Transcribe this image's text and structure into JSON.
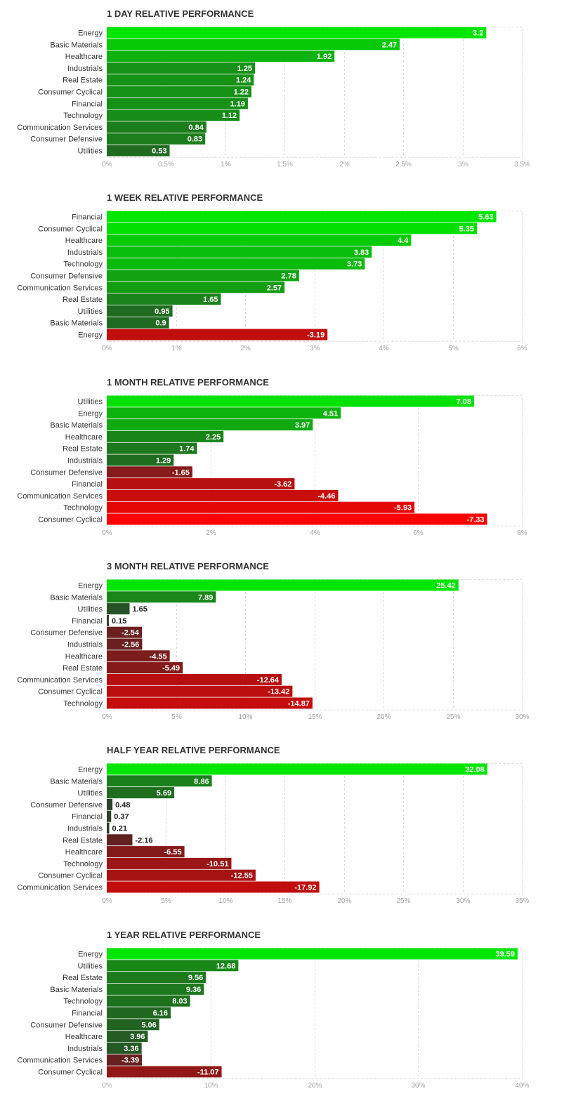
{
  "chart_data": [
    {
      "type": "bar",
      "orientation": "horizontal",
      "title": "1 DAY RELATIVE PERFORMANCE",
      "categories": [
        "Energy",
        "Basic Materials",
        "Healthcare",
        "Industrials",
        "Real Estate",
        "Consumer Cyclical",
        "Financial",
        "Technology",
        "Communication Services",
        "Consumer Defensive",
        "Utilities"
      ],
      "values": [
        3.2,
        2.47,
        1.92,
        1.25,
        1.24,
        1.22,
        1.19,
        1.12,
        0.84,
        0.83,
        0.53
      ],
      "value_labels": [
        "3.2",
        "2.47",
        "1.92",
        "1.25",
        "1.24",
        "1.22",
        "1.19",
        "1.12",
        "0.84",
        "0.83",
        "0.53"
      ],
      "xlim": [
        0,
        3.5
      ],
      "xticks": [
        0,
        0.5,
        1,
        1.5,
        2,
        2.5,
        3,
        3.5
      ],
      "xtick_labels": [
        "0%",
        "0.5%",
        "1%",
        "1.5%",
        "2%",
        "2.5%",
        "3%",
        "3.5%"
      ],
      "grid": true
    },
    {
      "type": "bar",
      "orientation": "horizontal",
      "title": "1 WEEK RELATIVE PERFORMANCE",
      "categories": [
        "Financial",
        "Consumer Cyclical",
        "Healthcare",
        "Industrials",
        "Technology",
        "Consumer Defensive",
        "Communication Services",
        "Real Estate",
        "Utilities",
        "Basic Materials",
        "Energy"
      ],
      "values": [
        5.63,
        5.35,
        4.4,
        3.83,
        3.73,
        2.78,
        2.57,
        1.65,
        0.95,
        0.9,
        -3.19
      ],
      "value_labels": [
        "5.63",
        "5.35",
        "4.4",
        "3.83",
        "3.73",
        "2.78",
        "2.57",
        "1.65",
        "0.95",
        "0.9",
        "-3.19"
      ],
      "xlim": [
        0,
        6
      ],
      "xticks": [
        0,
        1,
        2,
        3,
        4,
        5,
        6
      ],
      "xtick_labels": [
        "0%",
        "1%",
        "2%",
        "3%",
        "4%",
        "5%",
        "6%"
      ],
      "grid": true
    },
    {
      "type": "bar",
      "orientation": "horizontal",
      "title": "1 MONTH RELATIVE PERFORMANCE",
      "categories": [
        "Utilities",
        "Energy",
        "Basic Materials",
        "Healthcare",
        "Real Estate",
        "Industrials",
        "Consumer Defensive",
        "Financial",
        "Communication Services",
        "Technology",
        "Consumer Cyclical"
      ],
      "values": [
        7.08,
        4.51,
        3.97,
        2.25,
        1.74,
        1.29,
        -1.65,
        -3.62,
        -4.46,
        -5.93,
        -7.33
      ],
      "value_labels": [
        "7.08",
        "4.51",
        "3.97",
        "2.25",
        "1.74",
        "1.29",
        "-1.65",
        "-3.62",
        "-4.46",
        "-5.93",
        "-7.33"
      ],
      "xlim": [
        0,
        8
      ],
      "xticks": [
        0,
        2,
        4,
        6,
        8
      ],
      "xtick_labels": [
        "0%",
        "2%",
        "4%",
        "6%",
        "8%"
      ],
      "grid": true
    },
    {
      "type": "bar",
      "orientation": "horizontal",
      "title": "3 MONTH RELATIVE PERFORMANCE",
      "categories": [
        "Energy",
        "Basic Materials",
        "Utilities",
        "Financial",
        "Consumer Defensive",
        "Industrials",
        "Healthcare",
        "Real Estate",
        "Communication Services",
        "Consumer Cyclical",
        "Technology"
      ],
      "values": [
        25.42,
        7.89,
        1.65,
        0.15,
        -2.54,
        -2.56,
        -4.55,
        -5.49,
        -12.64,
        -13.42,
        -14.87
      ],
      "value_labels": [
        "25.42",
        "7.89",
        "1.65",
        "0.15",
        "-2.54",
        "-2.56",
        "-4.55",
        "-5.49",
        "-12.64",
        "-13.42",
        "-14.87"
      ],
      "xlim": [
        0,
        30
      ],
      "xticks": [
        0,
        5,
        10,
        15,
        20,
        25,
        30
      ],
      "xtick_labels": [
        "0%",
        "5%",
        "10%",
        "15%",
        "20%",
        "25%",
        "30%"
      ],
      "grid": true
    },
    {
      "type": "bar",
      "orientation": "horizontal",
      "title": "HALF YEAR RELATIVE PERFORMANCE",
      "categories": [
        "Energy",
        "Basic Materials",
        "Utilities",
        "Consumer Defensive",
        "Financial",
        "Industrials",
        "Real Estate",
        "Healthcare",
        "Technology",
        "Consumer Cyclical",
        "Communication Services"
      ],
      "values": [
        32.08,
        8.86,
        5.69,
        0.48,
        0.37,
        0.21,
        -2.16,
        -6.55,
        -10.51,
        -12.55,
        -17.92
      ],
      "value_labels": [
        "32.08",
        "8.86",
        "5.69",
        "0.48",
        "0.37",
        "0.21",
        "-2.16",
        "-6.55",
        "-10.51",
        "-12.55",
        "-17.92"
      ],
      "xlim": [
        0,
        35
      ],
      "xticks": [
        0,
        5,
        10,
        15,
        20,
        25,
        30,
        35
      ],
      "xtick_labels": [
        "0%",
        "5%",
        "10%",
        "15%",
        "20%",
        "25%",
        "30%",
        "35%"
      ],
      "grid": true
    },
    {
      "type": "bar",
      "orientation": "horizontal",
      "title": "1 YEAR RELATIVE PERFORMANCE",
      "categories": [
        "Energy",
        "Utilities",
        "Real Estate",
        "Basic Materials",
        "Technology",
        "Financial",
        "Consumer Defensive",
        "Healthcare",
        "Industrials",
        "Communication Services",
        "Consumer Cyclical"
      ],
      "values": [
        39.59,
        12.68,
        9.56,
        9.36,
        8.03,
        6.16,
        5.06,
        3.96,
        3.36,
        -3.39,
        -11.07
      ],
      "value_labels": [
        "39.59",
        "12.68",
        "9.56",
        "9.36",
        "8.03",
        "6.16",
        "5.06",
        "3.96",
        "3.36",
        "-3.39",
        "-11.07"
      ],
      "xlim": [
        0,
        40
      ],
      "xticks": [
        0,
        10,
        20,
        30,
        40
      ],
      "xtick_labels": [
        "0%",
        "10%",
        "20%",
        "30%",
        "40%"
      ],
      "grid": true
    }
  ]
}
